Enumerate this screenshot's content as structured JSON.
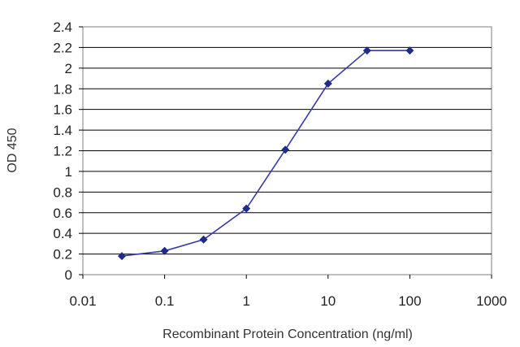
{
  "chart_data": {
    "type": "line",
    "title": "",
    "xlabel": "Recombinant Protein Concentration (ng/ml)",
    "ylabel": "OD 450",
    "x_scale": "log",
    "xlim": [
      0.01,
      1000
    ],
    "ylim": [
      0,
      2.4
    ],
    "x_ticks": [
      "0.01",
      "0.1",
      "1",
      "10",
      "100",
      "1000"
    ],
    "y_ticks": [
      "0",
      "0.2",
      "0.4",
      "0.6",
      "0.8",
      "1",
      "1.2",
      "1.4",
      "1.6",
      "1.8",
      "2",
      "2.2",
      "2.4"
    ],
    "grid": "horizontal",
    "legend": "none",
    "series": [
      {
        "x": [
          0.03,
          0.1,
          0.3,
          1,
          3,
          10,
          30,
          100
        ],
        "y": [
          0.18,
          0.23,
          0.34,
          0.64,
          1.21,
          1.85,
          2.17,
          2.17
        ]
      }
    ],
    "colors": {
      "line": "#3a3aa8",
      "marker": "#1f2a8a",
      "grid": "#000000",
      "frame": "#7f7f7f"
    }
  }
}
